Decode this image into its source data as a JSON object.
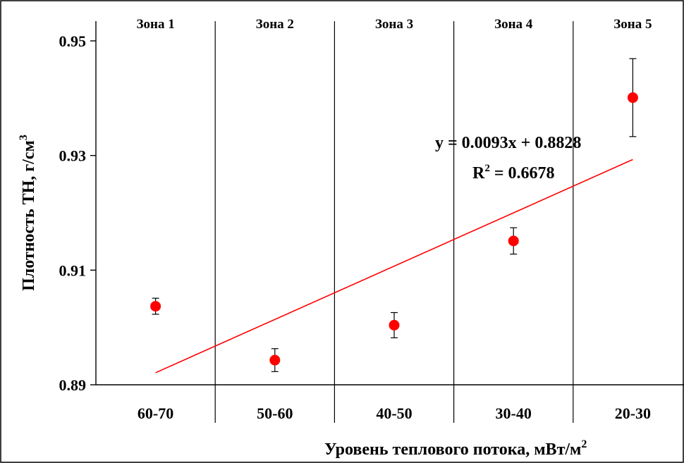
{
  "chart_data": {
    "type": "scatter",
    "categories": [
      "60-70",
      "50-60",
      "40-50",
      "30-40",
      "20-30"
    ],
    "zones": [
      "Зона 1",
      "Зона 2",
      "Зона 3",
      "Зона 4",
      "Зона 5"
    ],
    "series": [
      {
        "values": [
          0.9037,
          0.8943,
          0.9004,
          0.9151,
          0.9401
        ],
        "error": [
          0.0014,
          0.002,
          0.0022,
          0.0023,
          0.0068
        ],
        "color": "#ff0000"
      }
    ],
    "trendline": {
      "slope": 0.0093,
      "intercept": 0.8828,
      "equation": "y = 0.0093x + 0.8828",
      "r2_prefix": "R",
      "r2_exp": "2",
      "r2_value": " = 0.6678",
      "color": "#ff0000"
    },
    "ylim": [
      0.89,
      0.95
    ],
    "yticks": [
      0.89,
      0.91,
      0.93,
      0.95
    ],
    "yticklabels": [
      "0.89",
      "0.91",
      "0.93",
      "0.95"
    ],
    "ylabel": "Плотность ТН, г/см",
    "ylabel_exp": "3",
    "xlabel": "Уровень теплового потока, мВт/м",
    "xlabel_exp": "2",
    "grid": false
  }
}
